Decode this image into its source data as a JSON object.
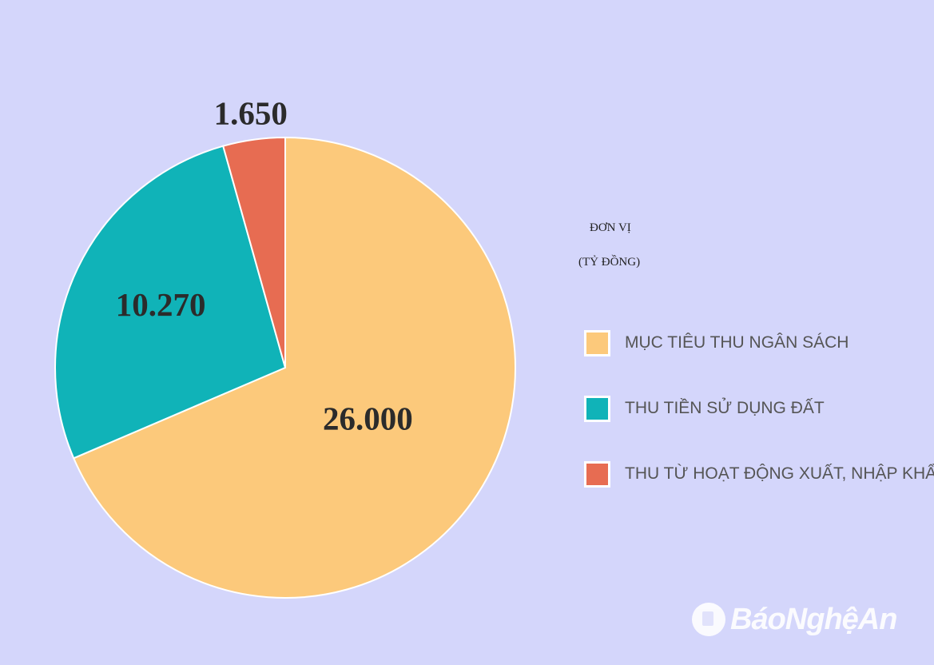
{
  "chart_data": {
    "type": "pie",
    "unit_label_line1": "ĐƠN VỊ",
    "unit_label_line2": "(TỶ ĐỒNG)",
    "slices": [
      {
        "label": "MỤC TIÊU THU NGÂN SÁCH",
        "value": 26000,
        "value_label": "26.000",
        "color": "#fcc97b"
      },
      {
        "label": "THU TIỀN SỬ DỤNG ĐẤT",
        "value": 10270,
        "value_label": "10.270",
        "color": "#10b3b8"
      },
      {
        "label": "THU TỪ HOẠT ĐỘNG XUẤT, NHẬP KHẨU",
        "value": 1650,
        "value_label": "1.650",
        "color": "#e76c52"
      }
    ],
    "legend_position": "right"
  },
  "watermark": {
    "text": "BáoNghệAn",
    "icon": "newspaper-logo-icon"
  }
}
